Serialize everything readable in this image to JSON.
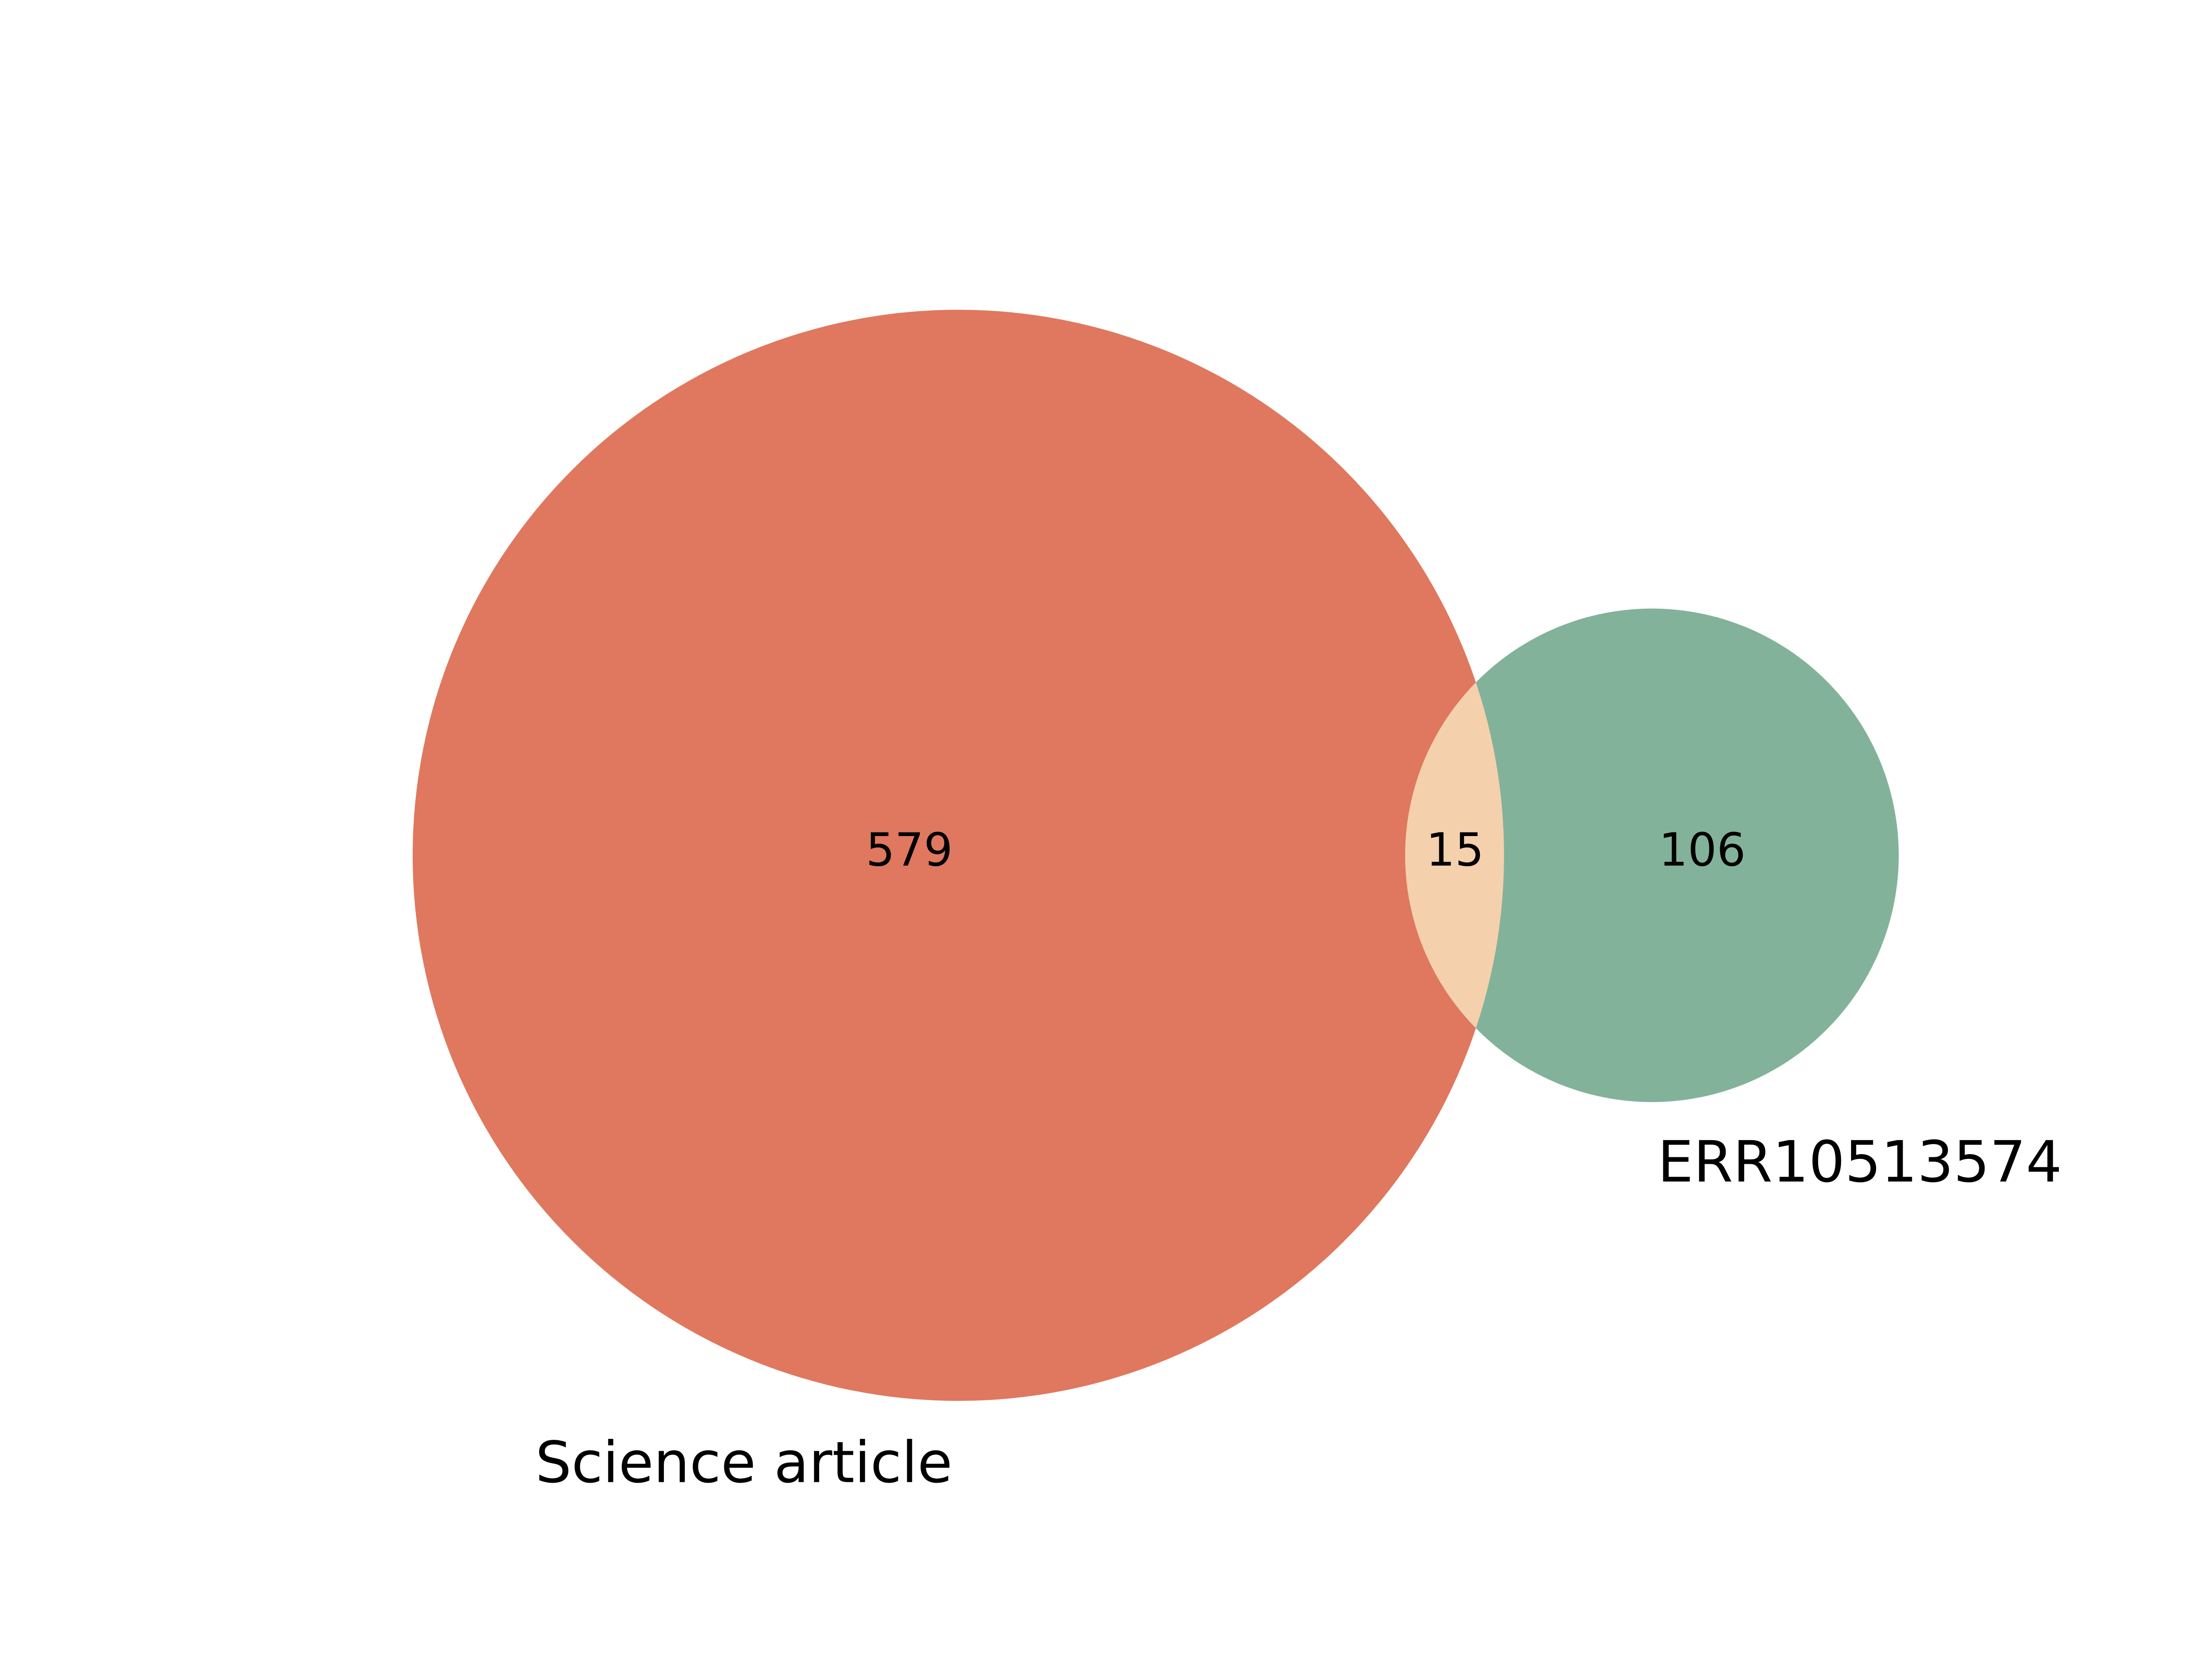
{
  "diagram": {
    "type": "venn2",
    "sets": [
      {
        "label": "Science article",
        "only_count": "579",
        "color": "#df785e"
      },
      {
        "label": "ERR10513574",
        "only_count": "106",
        "color": "#83b29a"
      }
    ],
    "intersection": {
      "count": "15",
      "color": "#f5d0ad"
    }
  }
}
